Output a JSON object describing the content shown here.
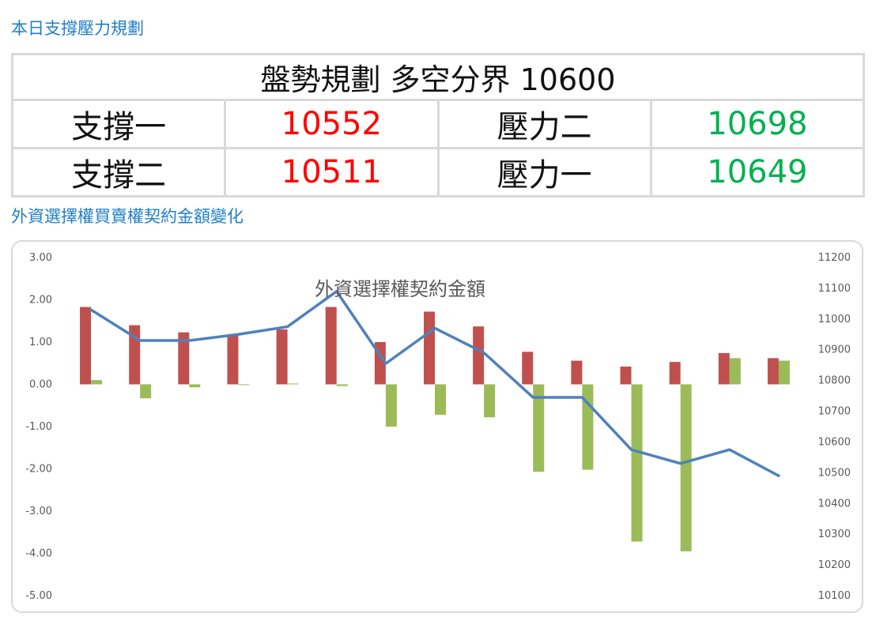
{
  "section1_title": "本日支撐壓力規劃",
  "plan": {
    "header": "盤勢規劃 多空分界 10600",
    "rows": [
      {
        "support_label": "支撐一",
        "support_value": "10552",
        "resistance_label": "壓力二",
        "resistance_value": "10698"
      },
      {
        "support_label": "支撐二",
        "support_value": "10511",
        "resistance_label": "壓力一",
        "resistance_value": "10649"
      }
    ],
    "colors": {
      "support": "#ff0000",
      "resistance": "#00b050",
      "border": "#d9d9d9"
    }
  },
  "section2_title": "外資選擇權買賣權契約金額變化",
  "chart_data": {
    "type": "bar",
    "title": "外資選擇權契約金額",
    "categories": [
      "",
      "",
      "",
      "",
      "",
      "",
      "",
      "",
      "",
      "",
      "",
      "",
      "",
      "",
      ""
    ],
    "series": [
      {
        "type": "bar",
        "axis": "left",
        "color": "#c0504d",
        "values": [
          1.83,
          1.4,
          1.23,
          1.17,
          1.3,
          1.83,
          1.0,
          1.72,
          1.37,
          0.77,
          0.56,
          0.42,
          0.53,
          0.74,
          0.62
        ]
      },
      {
        "type": "bar",
        "axis": "left",
        "color": "#9bbb59",
        "values": [
          0.1,
          -0.33,
          -0.07,
          -0.01,
          0.02,
          -0.04,
          -1.0,
          -0.72,
          -0.78,
          -2.07,
          -2.02,
          -3.72,
          -3.95,
          0.62,
          0.56
        ]
      },
      {
        "type": "line",
        "axis": "right",
        "color": "#4f81bd",
        "values": [
          11030,
          10930,
          10930,
          10950,
          10975,
          11090,
          10855,
          10970,
          10890,
          10745,
          10745,
          10575,
          10530,
          10575,
          10490
        ]
      }
    ],
    "left_axis": {
      "min": -5,
      "max": 3,
      "step": 1,
      "ticks": [
        "3.00",
        "2.00",
        "1.00",
        "0.00",
        "-1.00",
        "-2.00",
        "-3.00",
        "-4.00",
        "-5.00"
      ]
    },
    "right_axis": {
      "min": 10100,
      "max": 11200,
      "step": 100,
      "ticks": [
        "11200",
        "11100",
        "11000",
        "10900",
        "10800",
        "10700",
        "10600",
        "10500",
        "10400",
        "10300",
        "10200",
        "10100"
      ]
    },
    "grid": false,
    "legend": "none"
  }
}
